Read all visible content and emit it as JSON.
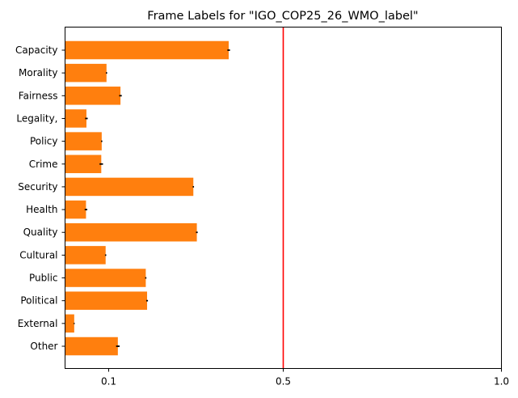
{
  "chart_data": {
    "type": "bar",
    "orientation": "horizontal",
    "title": "Frame Labels for \"IGO_COP25_26_WMO_label\"",
    "xlabel": "",
    "ylabel": "",
    "categories": [
      "Capacity",
      "Morality",
      "Fairness",
      "Legality,",
      "Policy",
      "Crime",
      "Security",
      "Health",
      "Quality",
      "Cultural",
      "Public",
      "Political",
      "External",
      "Other"
    ],
    "values": [
      0.375,
      0.095,
      0.127,
      0.049,
      0.084,
      0.083,
      0.294,
      0.048,
      0.302,
      0.093,
      0.185,
      0.188,
      0.021,
      0.121
    ],
    "errors": [
      0.003,
      0.0015,
      0.003,
      0.003,
      0.0015,
      0.004,
      0.0015,
      0.003,
      0.002,
      0.0015,
      0.0015,
      0.002,
      0.001,
      0.004
    ],
    "xlim": [
      0.0,
      1.0
    ],
    "xticks": [
      0.1,
      0.5,
      1.0
    ],
    "xtick_labels": [
      "0.1",
      "0.5",
      "1.0"
    ],
    "reference_line": {
      "x": 0.5,
      "color": "#ff0000"
    },
    "bar_color": "#ff7f0e",
    "error_color": "#000000",
    "grid": false,
    "legend": "none"
  }
}
